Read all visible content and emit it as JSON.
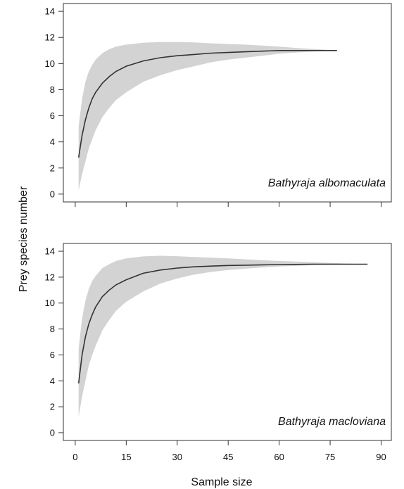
{
  "chart_data": [
    {
      "type": "area",
      "annotation": "Bathyraja albomaculata",
      "x_ticks": [
        "0",
        "15",
        "30",
        "45",
        "60",
        "75",
        "90"
      ],
      "y_ticks": [
        "0",
        "2",
        "4",
        "6",
        "8",
        "10",
        "12",
        "14"
      ],
      "xlim": [
        -3.5,
        93
      ],
      "ylim": [
        -0.6,
        14.6
      ],
      "show_x_tick_labels": false,
      "band_color": "#d3d3d3",
      "line_color": "#333333",
      "x": [
        1,
        2,
        3,
        4,
        5,
        6,
        8,
        10,
        12,
        15,
        20,
        25,
        30,
        35,
        40,
        45,
        50,
        55,
        60,
        65,
        70,
        75,
        77
      ],
      "y": [
        2.8,
        4.5,
        5.7,
        6.6,
        7.3,
        7.8,
        8.5,
        9.0,
        9.4,
        9.8,
        10.2,
        10.45,
        10.6,
        10.7,
        10.8,
        10.85,
        10.9,
        10.95,
        11.0,
        11.0,
        11.0,
        11.0,
        11.0
      ],
      "lower": [
        0.3,
        1.5,
        2.5,
        3.5,
        4.2,
        4.9,
        5.9,
        6.6,
        7.2,
        7.8,
        8.6,
        9.1,
        9.5,
        9.8,
        10.1,
        10.3,
        10.45,
        10.6,
        10.75,
        10.85,
        10.92,
        10.97,
        11.0
      ],
      "upper": [
        5.2,
        7.3,
        8.6,
        9.4,
        9.9,
        10.3,
        10.8,
        11.1,
        11.3,
        11.45,
        11.6,
        11.65,
        11.65,
        11.62,
        11.55,
        11.5,
        11.45,
        11.38,
        11.3,
        11.2,
        11.12,
        11.05,
        11.0
      ]
    },
    {
      "type": "area",
      "annotation": "Bathyraja macloviana",
      "x_ticks": [
        "0",
        "15",
        "30",
        "45",
        "60",
        "75",
        "90"
      ],
      "y_ticks": [
        "0",
        "2",
        "4",
        "6",
        "8",
        "10",
        "12",
        "14"
      ],
      "xlim": [
        -3.5,
        93
      ],
      "ylim": [
        -0.6,
        14.6
      ],
      "show_x_tick_labels": true,
      "xlabel": "Sample size",
      "band_color": "#d3d3d3",
      "line_color": "#333333",
      "x": [
        1,
        2,
        3,
        4,
        5,
        6,
        8,
        10,
        12,
        15,
        20,
        25,
        30,
        35,
        40,
        45,
        50,
        55,
        60,
        65,
        70,
        75,
        80,
        86
      ],
      "y": [
        3.8,
        6.0,
        7.4,
        8.4,
        9.1,
        9.7,
        10.5,
        11.0,
        11.4,
        11.8,
        12.3,
        12.55,
        12.7,
        12.8,
        12.85,
        12.9,
        12.92,
        12.95,
        12.97,
        12.98,
        13.0,
        13.0,
        13.0,
        13.0
      ],
      "lower": [
        1.2,
        2.8,
        4.0,
        5.2,
        6.0,
        6.7,
        7.9,
        8.7,
        9.4,
        10.1,
        10.9,
        11.5,
        11.9,
        12.2,
        12.4,
        12.55,
        12.65,
        12.75,
        12.83,
        12.88,
        12.92,
        12.95,
        12.98,
        13.0
      ],
      "upper": [
        6.5,
        8.8,
        10.2,
        11.1,
        11.7,
        12.1,
        12.7,
        13.0,
        13.25,
        13.45,
        13.6,
        13.65,
        13.62,
        13.55,
        13.5,
        13.45,
        13.38,
        13.3,
        13.25,
        13.2,
        13.15,
        13.1,
        13.05,
        13.0
      ]
    }
  ],
  "shared": {
    "ylabel": "Prey species number"
  }
}
